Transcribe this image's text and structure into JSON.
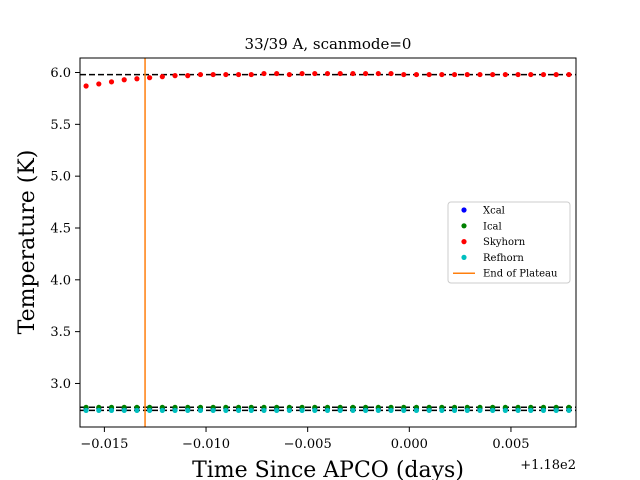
{
  "chart_data": {
    "type": "scatter",
    "title": "33/39 A, scanmode=0",
    "xlabel": "Time Since APCO (days)",
    "ylabel": "Temperature (K)",
    "x_offset_label": "+1.18e2",
    "xlim": [
      -0.0162,
      0.0082
    ],
    "ylim": [
      2.58,
      6.14
    ],
    "xticks": [
      -0.015,
      -0.01,
      -0.005,
      0.0,
      0.005
    ],
    "xtick_labels": [
      "−0.015",
      "−0.010",
      "−0.005",
      "0.000",
      "0.005"
    ],
    "yticks": [
      3.0,
      3.5,
      4.0,
      4.5,
      5.0,
      5.5,
      6.0
    ],
    "ytick_labels": [
      "3.0",
      "3.5",
      "4.0",
      "4.5",
      "5.0",
      "5.5",
      "6.0"
    ],
    "grid": false,
    "legend_position": "center-right",
    "x_start": -0.0159,
    "x_step": 0.000625,
    "n_points": 39,
    "series": [
      {
        "name": "Xcal",
        "color": "#0000ff",
        "marker": "dot",
        "constant": 2.76
      },
      {
        "name": "Ical",
        "color": "#008000",
        "marker": "dot",
        "constant": 2.77
      },
      {
        "name": "Skyhorn",
        "color": "#ff0000",
        "marker": "dot",
        "values": [
          5.87,
          5.89,
          5.91,
          5.93,
          5.94,
          5.95,
          5.96,
          5.97,
          5.97,
          5.98,
          5.98,
          5.98,
          5.98,
          5.98,
          5.99,
          5.99,
          5.98,
          5.99,
          5.99,
          5.99,
          5.99,
          5.99,
          5.99,
          5.99,
          5.99,
          5.98,
          5.98,
          5.98,
          5.98,
          5.98,
          5.98,
          5.98,
          5.98,
          5.98,
          5.98,
          5.98,
          5.98,
          5.98,
          5.98
        ]
      },
      {
        "name": "Refhorn",
        "color": "#00bfbf",
        "marker": "dot",
        "constant": 2.74
      }
    ],
    "reference_lines": [
      {
        "y": 5.98,
        "color": "#000000",
        "style": "dashed"
      },
      {
        "y": 2.77,
        "color": "#000000",
        "style": "dashed"
      },
      {
        "y": 2.74,
        "color": "#000000",
        "style": "dashed"
      }
    ],
    "vertical_line": {
      "name": "End of Plateau",
      "x": -0.013,
      "color": "#ff7f0e"
    }
  }
}
